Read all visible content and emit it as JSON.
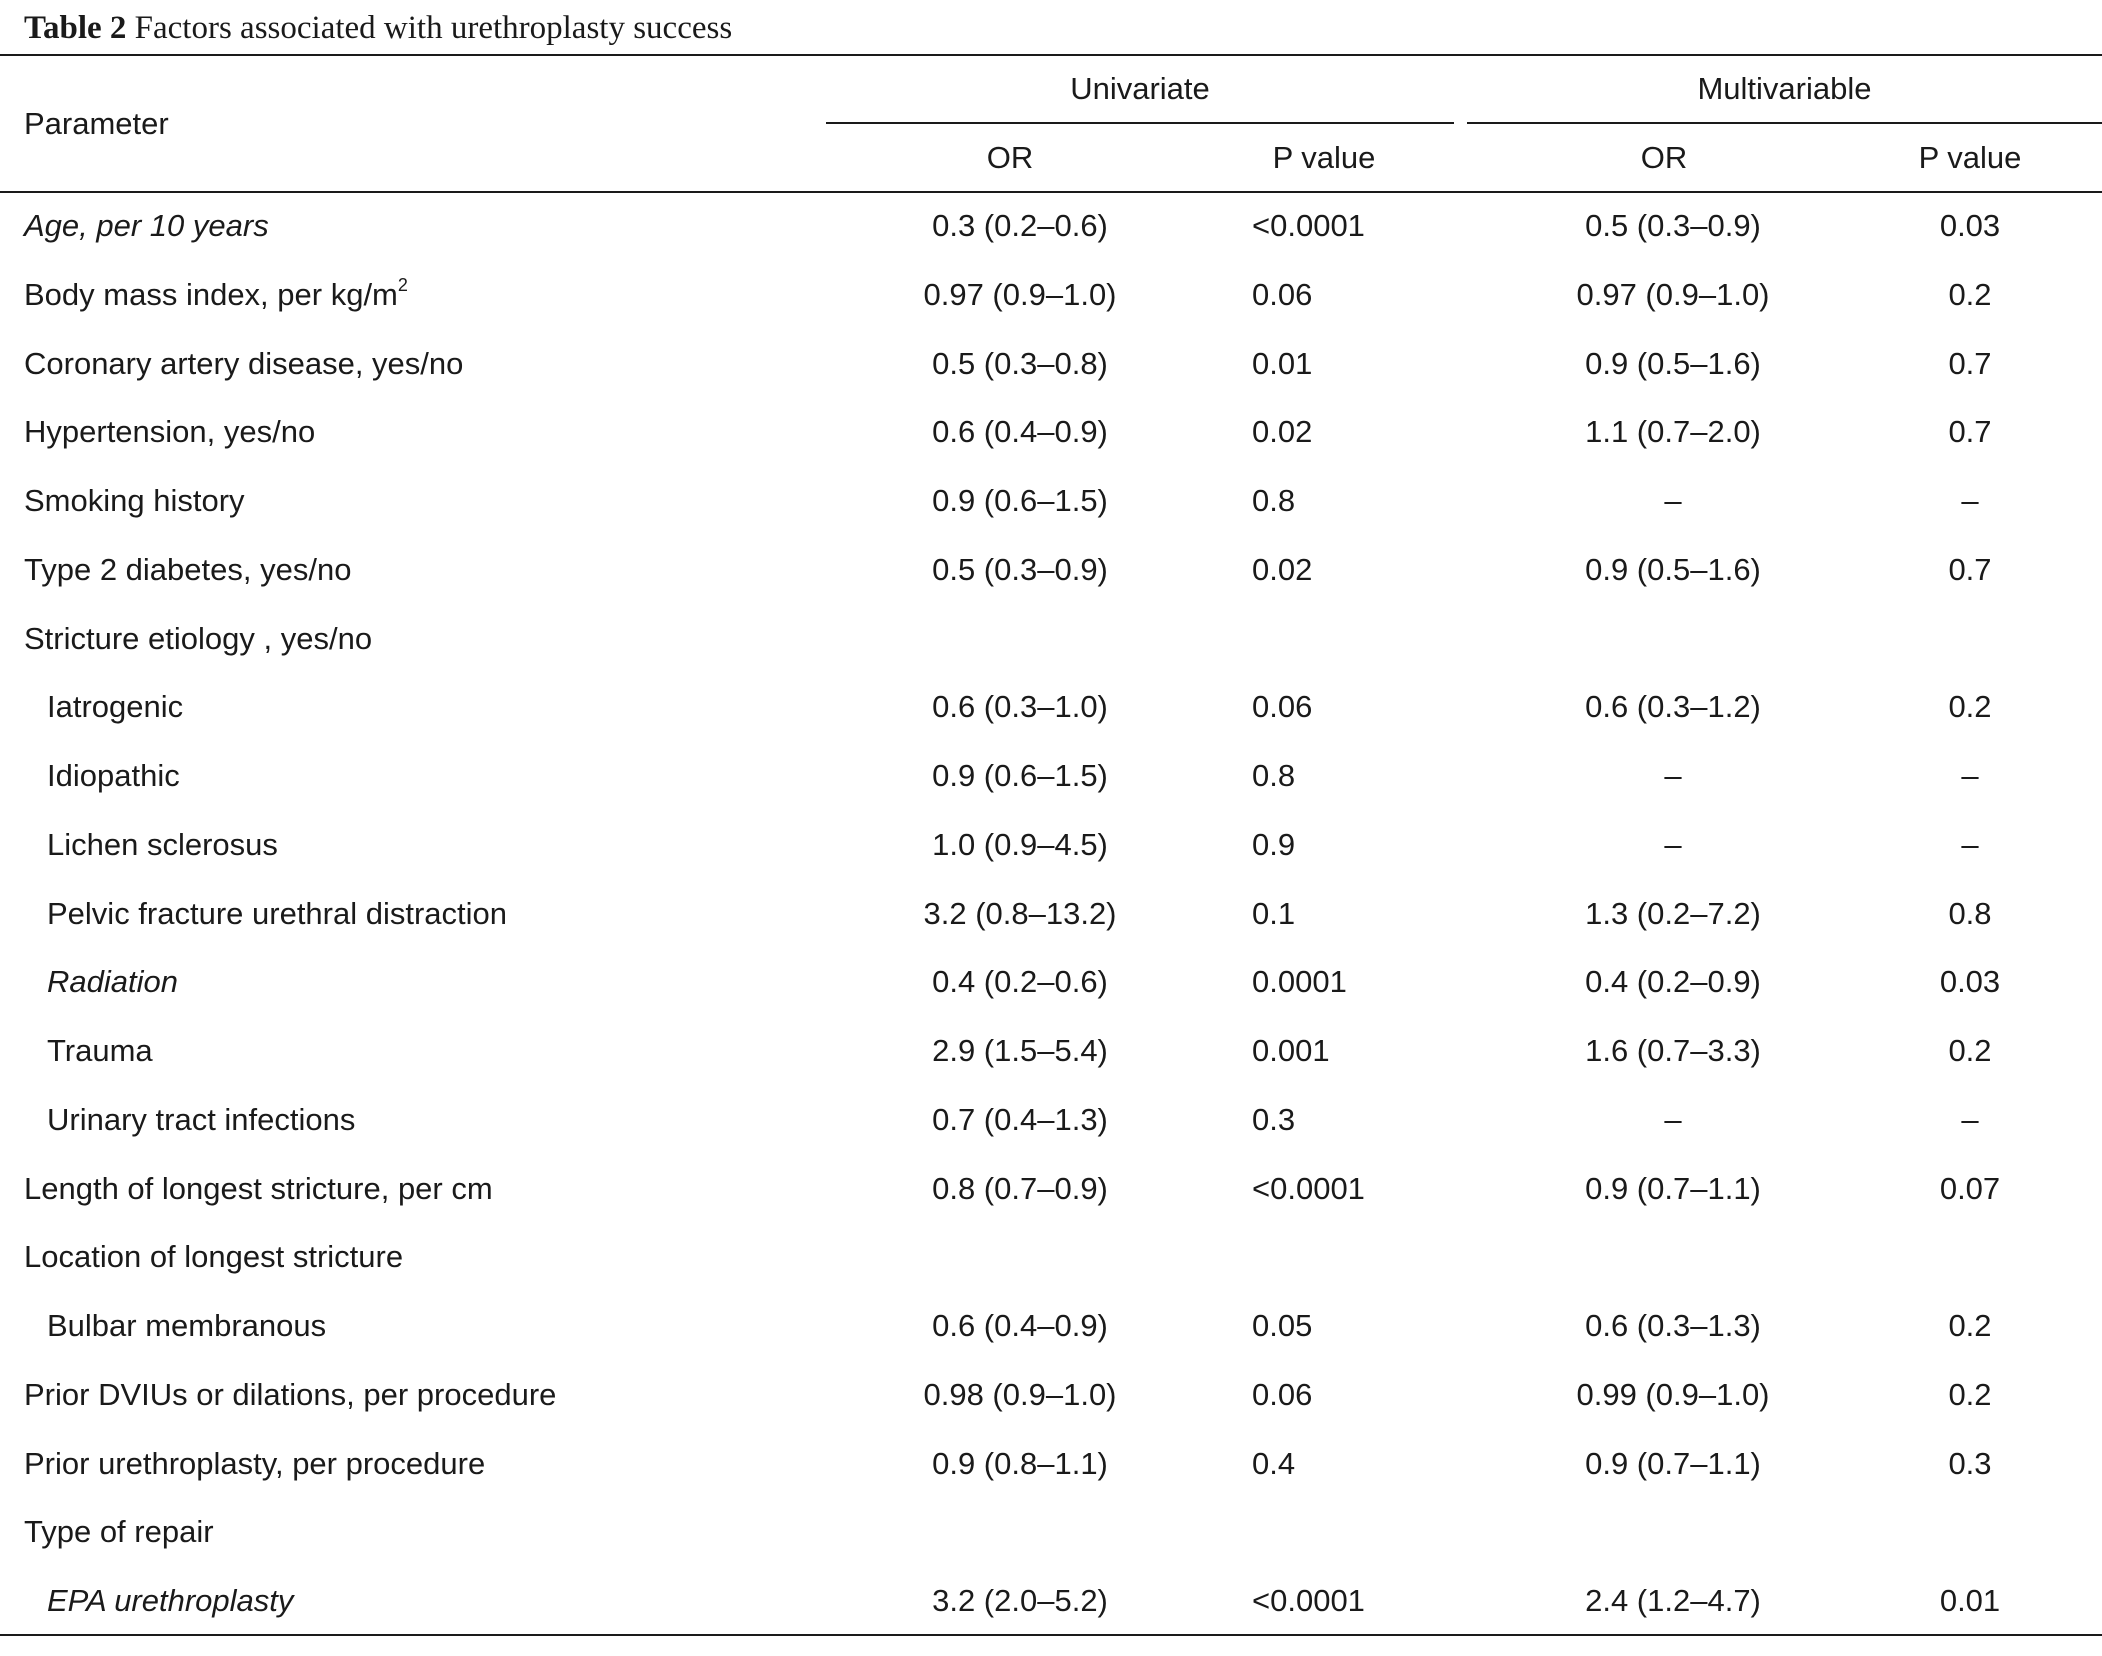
{
  "caption": {
    "label": "Table 2",
    "title": "Factors associated with urethroplasty success"
  },
  "header": {
    "parameter": "Parameter",
    "univariate": "Univariate",
    "multivariable": "Multivariable",
    "or": "OR",
    "p_value": "P value"
  },
  "rows": [
    {
      "parameter": "Age, per 10 years",
      "italic": true,
      "indent": false,
      "uni_or": "0.3 (0.2–0.6)",
      "uni_p": "<0.0001",
      "multi_or": "0.5 (0.3–0.9)",
      "multi_p": "0.03"
    },
    {
      "parameter": "Body mass index, per kg/m",
      "sup": "2",
      "italic": false,
      "indent": false,
      "uni_or": "0.97 (0.9–1.0)",
      "uni_p": "0.06",
      "multi_or": "0.97 (0.9–1.0)",
      "multi_p": "0.2"
    },
    {
      "parameter": "Coronary artery disease, yes/no",
      "italic": false,
      "indent": false,
      "uni_or": "0.5 (0.3–0.8)",
      "uni_p": "0.01",
      "multi_or": "0.9 (0.5–1.6)",
      "multi_p": "0.7"
    },
    {
      "parameter": "Hypertension, yes/no",
      "italic": false,
      "indent": false,
      "uni_or": "0.6 (0.4–0.9)",
      "uni_p": "0.02",
      "multi_or": "1.1 (0.7–2.0)",
      "multi_p": "0.7"
    },
    {
      "parameter": "Smoking history",
      "italic": false,
      "indent": false,
      "uni_or": "0.9 (0.6–1.5)",
      "uni_p": "0.8",
      "multi_or": "–",
      "multi_p": "–"
    },
    {
      "parameter": "Type 2 diabetes, yes/no",
      "italic": false,
      "indent": false,
      "uni_or": "0.5 (0.3–0.9)",
      "uni_p": "0.02",
      "multi_or": "0.9 (0.5–1.6)",
      "multi_p": "0.7"
    },
    {
      "parameter": "Stricture etiology , yes/no",
      "italic": false,
      "indent": false,
      "uni_or": "",
      "uni_p": "",
      "multi_or": "",
      "multi_p": ""
    },
    {
      "parameter": "Iatrogenic",
      "italic": false,
      "indent": true,
      "uni_or": "0.6 (0.3–1.0)",
      "uni_p": "0.06",
      "multi_or": "0.6 (0.3–1.2)",
      "multi_p": "0.2"
    },
    {
      "parameter": "Idiopathic",
      "italic": false,
      "indent": true,
      "uni_or": "0.9 (0.6–1.5)",
      "uni_p": "0.8",
      "multi_or": "–",
      "multi_p": "–"
    },
    {
      "parameter": "Lichen sclerosus",
      "italic": false,
      "indent": true,
      "uni_or": "1.0 (0.9–4.5)",
      "uni_p": "0.9",
      "multi_or": "–",
      "multi_p": "–"
    },
    {
      "parameter": "Pelvic fracture urethral distraction",
      "italic": false,
      "indent": true,
      "uni_or": "3.2 (0.8–13.2)",
      "uni_p": "0.1",
      "multi_or": "1.3 (0.2–7.2)",
      "multi_p": "0.8"
    },
    {
      "parameter": "Radiation",
      "italic": true,
      "indent": true,
      "uni_or": "0.4 (0.2–0.6)",
      "uni_p": "0.0001",
      "multi_or": "0.4 (0.2–0.9)",
      "multi_p": "0.03"
    },
    {
      "parameter": "Trauma",
      "italic": false,
      "indent": true,
      "uni_or": "2.9 (1.5–5.4)",
      "uni_p": "0.001",
      "multi_or": "1.6 (0.7–3.3)",
      "multi_p": "0.2"
    },
    {
      "parameter": "Urinary tract infections",
      "italic": false,
      "indent": true,
      "uni_or": "0.7 (0.4–1.3)",
      "uni_p": "0.3",
      "multi_or": "–",
      "multi_p": "–"
    },
    {
      "parameter": "Length of longest stricture, per cm",
      "italic": false,
      "indent": false,
      "uni_or": "0.8 (0.7–0.9)",
      "uni_p": "<0.0001",
      "multi_or": "0.9 (0.7–1.1)",
      "multi_p": "0.07"
    },
    {
      "parameter": "Location of longest stricture",
      "italic": false,
      "indent": false,
      "uni_or": "",
      "uni_p": "",
      "multi_or": "",
      "multi_p": ""
    },
    {
      "parameter": "Bulbar membranous",
      "italic": false,
      "indent": true,
      "uni_or": "0.6 (0.4–0.9)",
      "uni_p": "0.05",
      "multi_or": "0.6 (0.3–1.3)",
      "multi_p": "0.2"
    },
    {
      "parameter": "Prior DVIUs or dilations, per procedure",
      "italic": false,
      "indent": false,
      "uni_or": "0.98 (0.9–1.0)",
      "uni_p": "0.06",
      "multi_or": "0.99 (0.9–1.0)",
      "multi_p": "0.2"
    },
    {
      "parameter": "Prior urethroplasty, per procedure",
      "italic": false,
      "indent": false,
      "uni_or": "0.9 (0.8–1.1)",
      "uni_p": "0.4",
      "multi_or": "0.9 (0.7–1.1)",
      "multi_p": "0.3"
    },
    {
      "parameter": "Type of repair",
      "italic": false,
      "indent": false,
      "uni_or": "",
      "uni_p": "",
      "multi_or": "",
      "multi_p": ""
    },
    {
      "parameter": "EPA urethroplasty",
      "italic": true,
      "indent": true,
      "uni_or": "3.2 (2.0–5.2)",
      "uni_p": "<0.0001",
      "multi_or": "2.4 (1.2–4.7)",
      "multi_p": "0.01"
    }
  ]
}
